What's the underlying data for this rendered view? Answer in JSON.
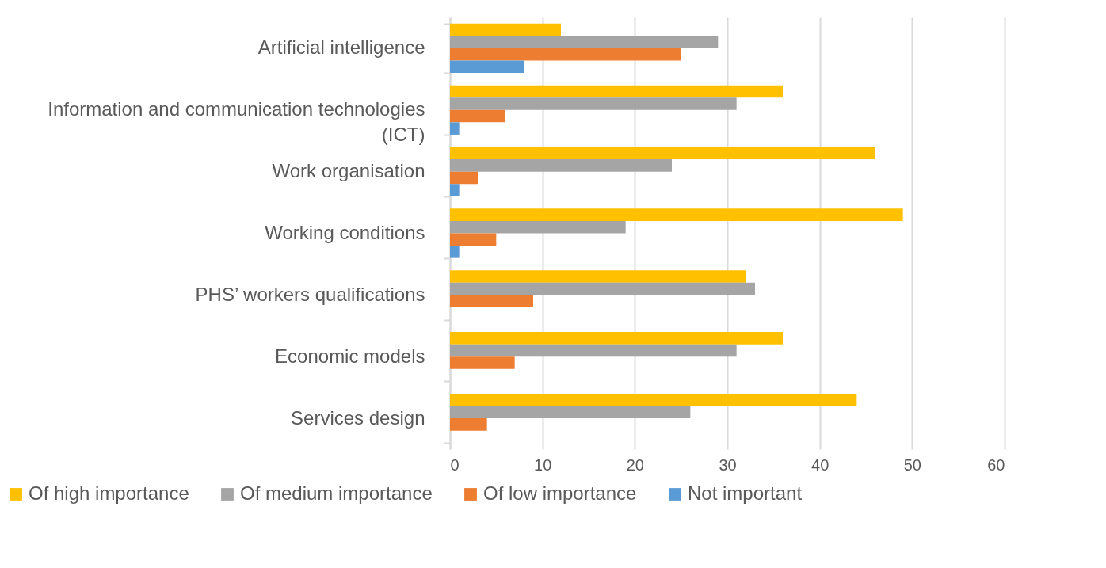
{
  "chart_data": {
    "type": "bar",
    "orientation": "horizontal",
    "categories": [
      "Artificial intelligence",
      "Information and communication technologies (ICT)",
      "Work organisation",
      "Working conditions",
      "PHS’ workers qualifications",
      "Economic models",
      "Services design"
    ],
    "series": [
      {
        "name": "Of high importance",
        "color": "#ffc000",
        "values": [
          12,
          36,
          46,
          49,
          32,
          36,
          44
        ]
      },
      {
        "name": "Of medium importance",
        "color": "#a5a5a5",
        "values": [
          29,
          31,
          24,
          19,
          33,
          31,
          26
        ]
      },
      {
        "name": "Of low importance",
        "color": "#ed7d31",
        "values": [
          25,
          6,
          3,
          5,
          9,
          7,
          4
        ]
      },
      {
        "name": "Not important",
        "color": "#5b9bd5",
        "values": [
          8,
          1,
          1,
          1,
          null,
          null,
          null
        ]
      }
    ],
    "xlim": [
      0,
      60
    ],
    "xticks": [
      0,
      10,
      20,
      30,
      40,
      50,
      60
    ],
    "grid": "x",
    "legend": "bottom"
  }
}
